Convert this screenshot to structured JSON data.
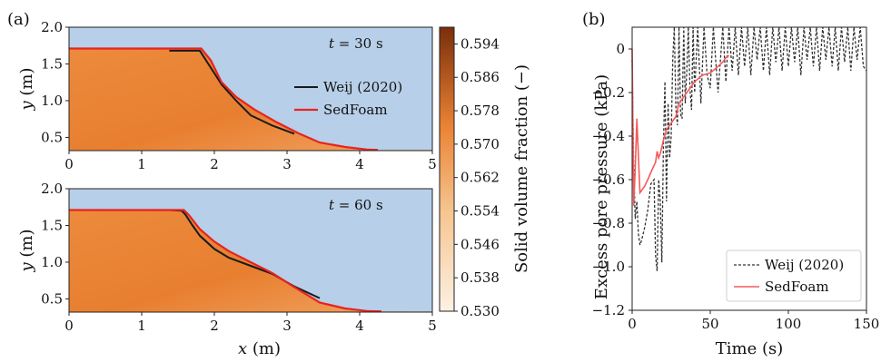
{
  "panel_labels": [
    "(a)",
    "(b)"
  ],
  "colorbar": {
    "label": "Solid volume fraction (−)",
    "ticks": [
      "0.594",
      "0.586",
      "0.578",
      "0.570",
      "0.562",
      "0.554",
      "0.546",
      "0.538",
      "0.530"
    ],
    "range": [
      0.53,
      0.598
    ],
    "colors": {
      "low": "#fcf1e4",
      "high": "#7a2e0a"
    }
  },
  "colors": {
    "sky": "#b7cfe8",
    "sediment": "#ea8334",
    "weij": "#1a1a1a",
    "sedfoam": "#e8231f",
    "sedfoam_b": "#f25b5b"
  },
  "chart_data": [
    {
      "type": "area",
      "panel": "(a)",
      "annotation": "t = 30 s",
      "annotation_var": "t",
      "annotation_rest": " = 30 s",
      "xlabel": "",
      "ylabel_var": "y",
      "ylabel_rest": " (m)",
      "xlim": [
        0,
        5
      ],
      "ylim": [
        0.32,
        2.0
      ],
      "xticks": [
        "0",
        "1",
        "2",
        "3",
        "4",
        "5"
      ],
      "yticks": [
        "0.5",
        "1.0",
        "1.5",
        "2.0"
      ],
      "series": [
        {
          "name": "Weij (2020)",
          "x": [
            1.38,
            1.8,
            1.95,
            2.1,
            2.3,
            2.5,
            2.8,
            3.1
          ],
          "y": [
            1.68,
            1.68,
            1.45,
            1.22,
            1.0,
            0.8,
            0.66,
            0.55
          ]
        },
        {
          "name": "SedFoam",
          "x": [
            0.0,
            1.82,
            1.95,
            2.1,
            2.3,
            2.55,
            2.85,
            3.15,
            3.45,
            3.8,
            4.1,
            4.25
          ],
          "y": [
            1.71,
            1.71,
            1.55,
            1.25,
            1.05,
            0.88,
            0.71,
            0.56,
            0.43,
            0.37,
            0.335,
            0.33
          ]
        }
      ]
    },
    {
      "type": "area",
      "panel": "(a)",
      "annotation": "t = 60 s",
      "annotation_var": "t",
      "annotation_rest": " = 60 s",
      "xlabel_var": "x",
      "xlabel_rest": " (m)",
      "ylabel_var": "y",
      "ylabel_rest": " (m)",
      "xlim": [
        0,
        5
      ],
      "ylim": [
        0.32,
        2.0
      ],
      "xticks": [
        "0",
        "1",
        "2",
        "3",
        "4",
        "5"
      ],
      "yticks": [
        "0.5",
        "1.0",
        "1.5",
        "2.0"
      ],
      "series": [
        {
          "name": "Weij (2020)",
          "x": [
            1.38,
            1.55,
            1.6,
            1.7,
            1.8,
            2.0,
            2.2,
            2.5,
            2.8,
            3.1,
            3.45
          ],
          "y": [
            1.71,
            1.7,
            1.65,
            1.5,
            1.36,
            1.18,
            1.06,
            0.95,
            0.84,
            0.67,
            0.51
          ]
        },
        {
          "name": "SedFoam",
          "x": [
            0.0,
            1.58,
            1.65,
            1.8,
            2.0,
            2.2,
            2.5,
            2.8,
            3.1,
            3.45,
            3.8,
            4.1,
            4.3
          ],
          "y": [
            1.71,
            1.71,
            1.64,
            1.45,
            1.28,
            1.15,
            1.0,
            0.85,
            0.66,
            0.45,
            0.37,
            0.335,
            0.33
          ]
        }
      ]
    },
    {
      "type": "line",
      "panel": "(b)",
      "xlabel": "Time (s)",
      "ylabel": "Excess pore pressure (kPa)",
      "xlim": [
        0,
        150
      ],
      "ylim": [
        -1.2,
        0.1
      ],
      "xticks": [
        "0",
        "50",
        "100",
        "150"
      ],
      "yticks": [
        "0",
        "−0.2",
        "−0.4",
        "−0.6",
        "−0.8",
        "−1.0",
        "−1.2"
      ],
      "series": [
        {
          "name": "Weij (2020)",
          "style": "dashed",
          "x": [
            0,
            1,
            2,
            3,
            4,
            5,
            6,
            8,
            10,
            12,
            14,
            15,
            16,
            17,
            18,
            19,
            20,
            21,
            22,
            23,
            24,
            25,
            26,
            27,
            28,
            29,
            30,
            31,
            32,
            33,
            34,
            35,
            36,
            37,
            38,
            39,
            40,
            42,
            44,
            46,
            48,
            50,
            52,
            55,
            58,
            60,
            62,
            64,
            66,
            68,
            70,
            72,
            74,
            76,
            78,
            80,
            82,
            84,
            86,
            88,
            90,
            92,
            94,
            96,
            98,
            100,
            102,
            104,
            106,
            108,
            110,
            112,
            114,
            116,
            118,
            120,
            122,
            124,
            126,
            128,
            130,
            132,
            134,
            136,
            138,
            140,
            142,
            144,
            146,
            148,
            150
          ],
          "y": [
            -0.05,
            -0.55,
            -0.78,
            -0.7,
            -0.85,
            -0.9,
            -0.88,
            -0.82,
            -0.74,
            -0.62,
            -0.6,
            -0.95,
            -1.02,
            -0.6,
            -0.7,
            -0.98,
            -0.45,
            -0.15,
            -0.7,
            -0.25,
            -0.5,
            -0.4,
            -0.05,
            0.1,
            -0.28,
            -0.35,
            0.1,
            -0.3,
            -0.32,
            0.1,
            -0.25,
            -0.1,
            0.1,
            -0.18,
            -0.28,
            0.1,
            -0.2,
            0.1,
            -0.25,
            0.1,
            -0.12,
            -0.18,
            0.1,
            -0.2,
            0.1,
            -0.15,
            0.1,
            -0.1,
            0.1,
            -0.12,
            0.1,
            -0.08,
            0.1,
            -0.12,
            0.1,
            -0.05,
            0.1,
            -0.1,
            0.1,
            -0.12,
            0.1,
            -0.06,
            0.1,
            -0.1,
            0.1,
            -0.08,
            0.1,
            -0.06,
            0.1,
            -0.12,
            0.1,
            -0.05,
            0.1,
            -0.08,
            0.1,
            -0.1,
            0.1,
            -0.05,
            0.1,
            -0.08,
            0.1,
            -0.1,
            0.1,
            -0.06,
            0.1,
            -0.1,
            0.1,
            -0.05,
            0.1,
            -0.08,
            -0.1
          ]
        },
        {
          "name": "SedFoam",
          "style": "solid",
          "x": [
            0,
            1,
            2,
            3,
            5,
            8,
            10,
            13,
            15,
            16,
            17,
            18,
            20,
            22,
            25,
            28,
            30,
            35,
            40,
            45,
            50,
            55,
            58,
            60,
            62
          ],
          "y": [
            0.0,
            -0.72,
            -0.55,
            -0.32,
            -0.66,
            -0.63,
            -0.6,
            -0.55,
            -0.52,
            -0.47,
            -0.5,
            -0.48,
            -0.42,
            -0.37,
            -0.34,
            -0.31,
            -0.25,
            -0.2,
            -0.15,
            -0.12,
            -0.11,
            -0.08,
            -0.06,
            -0.04,
            -0.03
          ]
        }
      ]
    }
  ]
}
